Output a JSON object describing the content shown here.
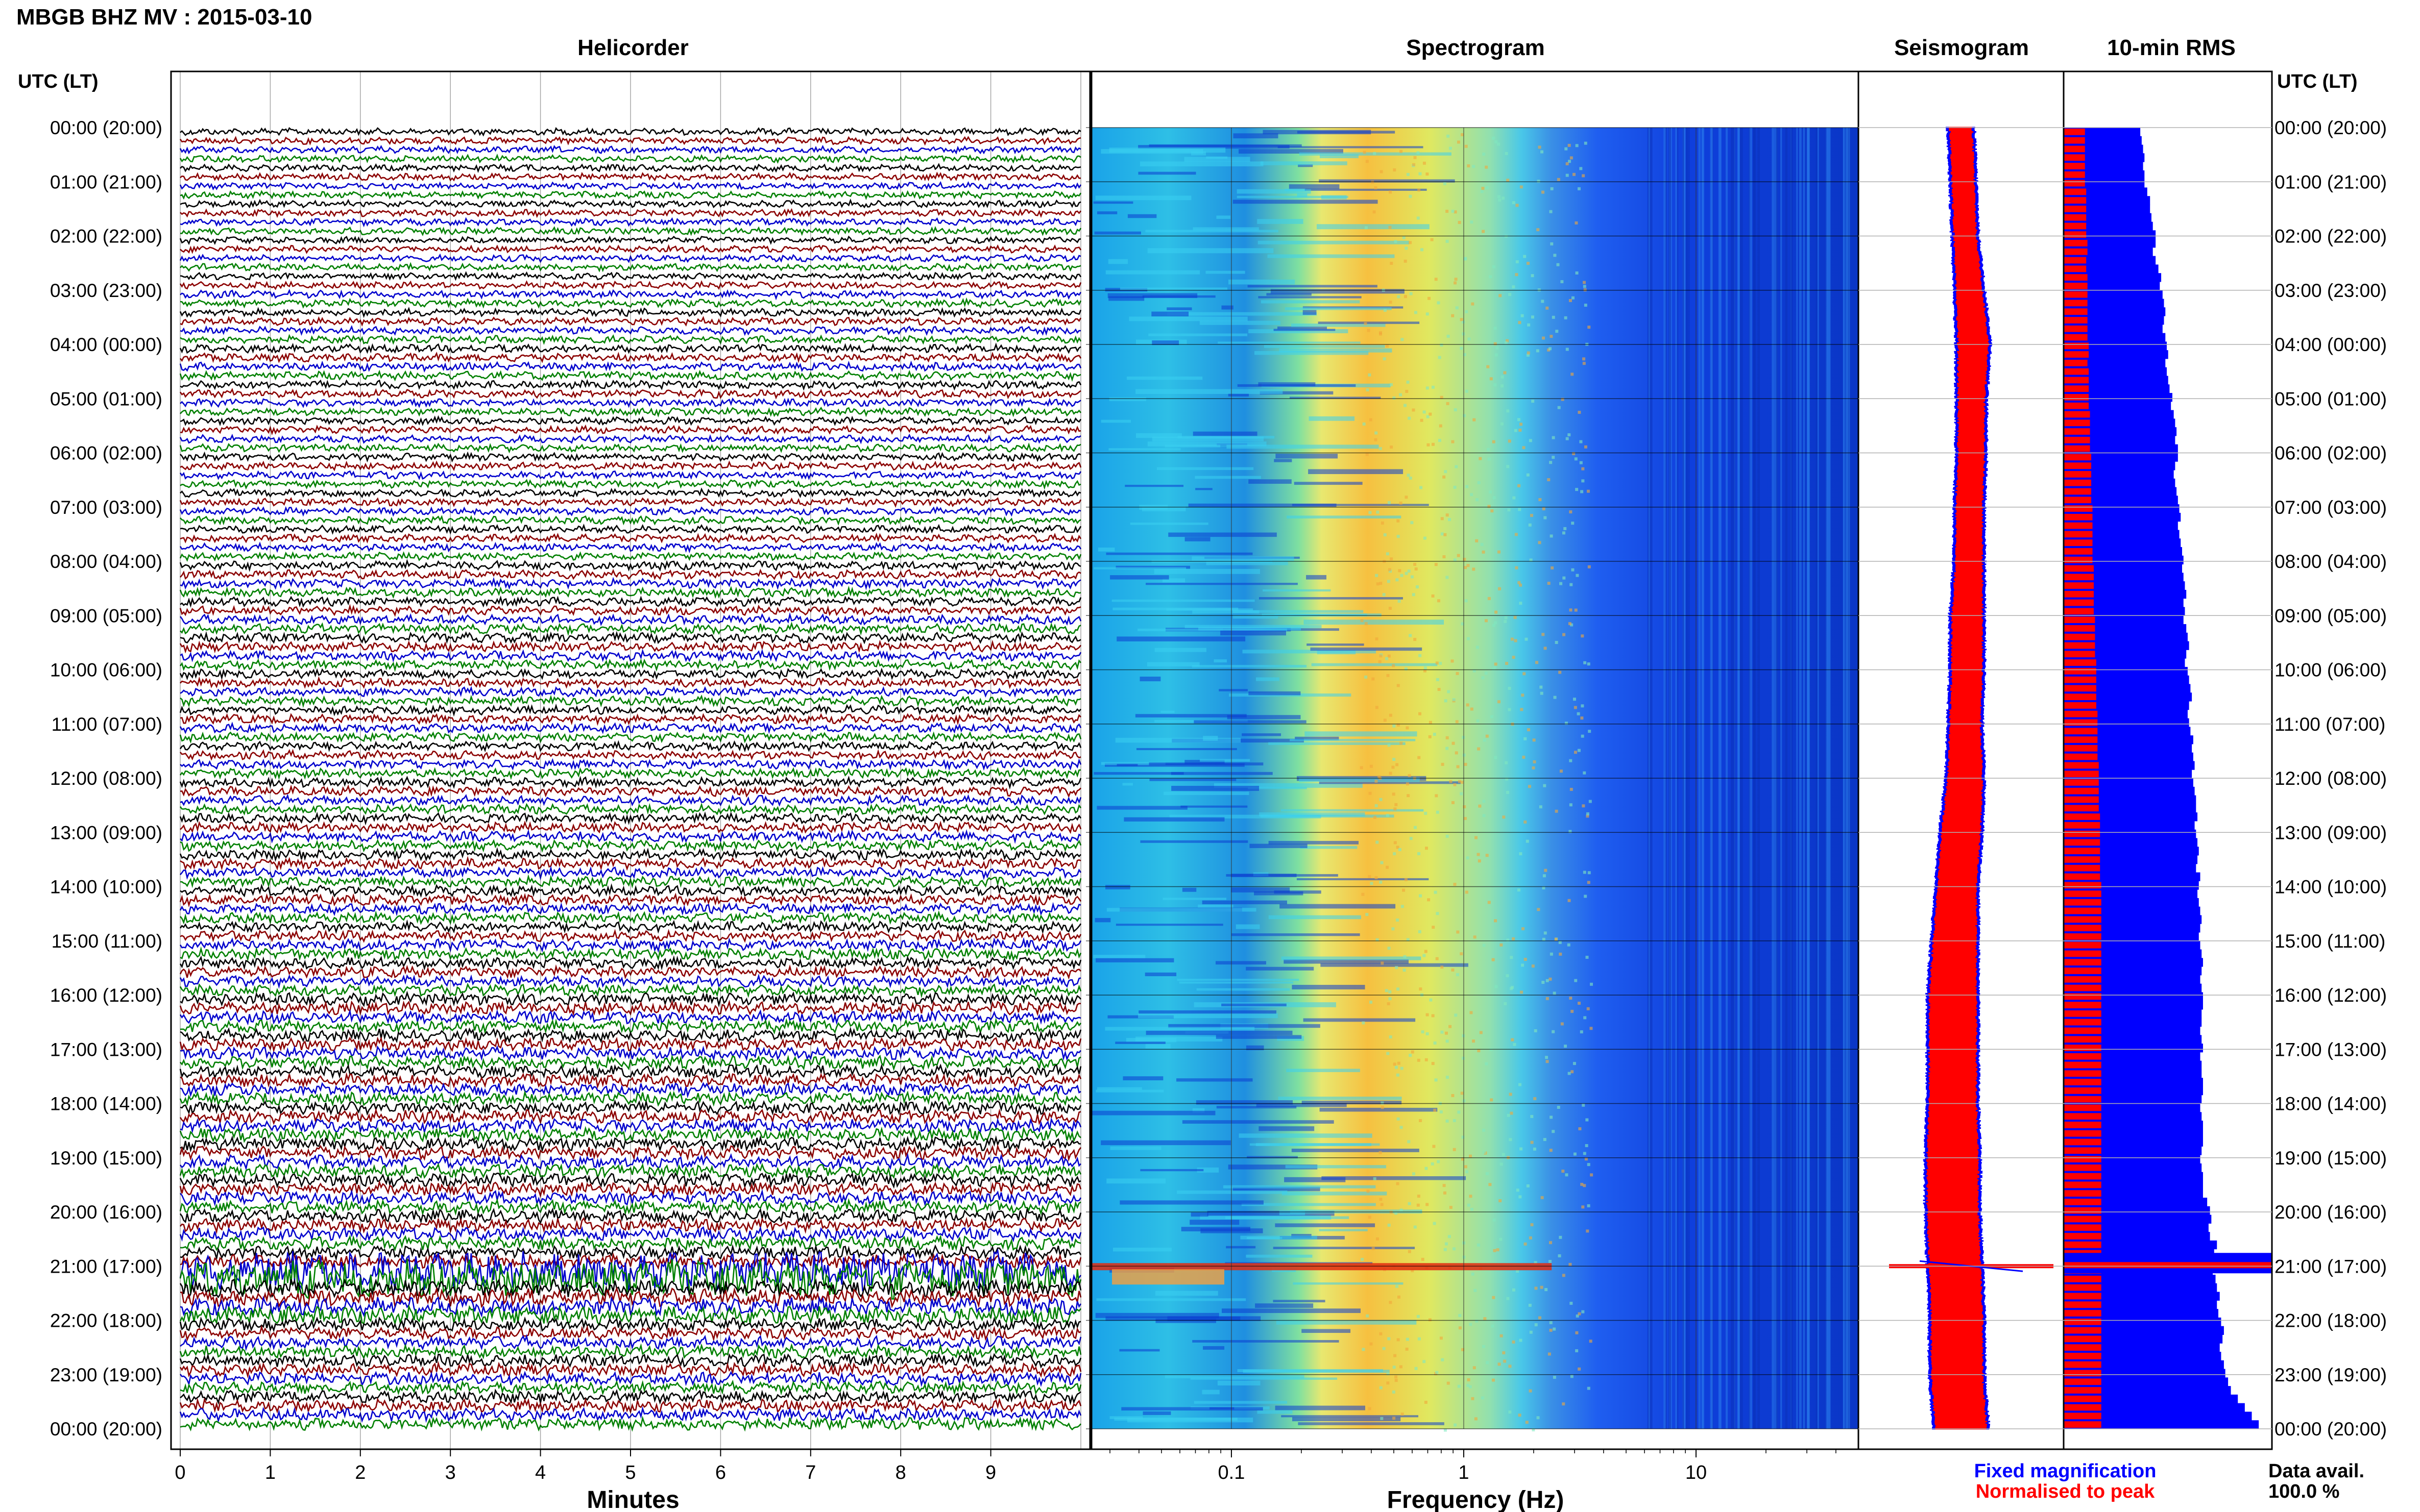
{
  "chart_data": {
    "type": "heatmap",
    "title": "MBGB BHZ MV : 2015-03-10",
    "colors": {
      "frame": "#000000",
      "grid": "#b0b0b0",
      "trace_cycle": [
        "#000000",
        "#8b0000",
        "#0000cd",
        "#008000"
      ],
      "rms_fixed": "#0000ff",
      "rms_norm": "#ff0000"
    },
    "time_axis": {
      "label": "UTC (LT)",
      "ticks": [
        "00:00 (20:00)",
        "01:00 (21:00)",
        "02:00 (22:00)",
        "03:00 (23:00)",
        "04:00 (00:00)",
        "05:00 (01:00)",
        "06:00 (02:00)",
        "07:00 (03:00)",
        "08:00 (04:00)",
        "09:00 (05:00)",
        "10:00 (06:00)",
        "11:00 (07:00)",
        "12:00 (08:00)",
        "13:00 (09:00)",
        "14:00 (10:00)",
        "15:00 (11:00)",
        "16:00 (12:00)",
        "17:00 (13:00)",
        "18:00 (14:00)",
        "19:00 (15:00)",
        "20:00 (16:00)",
        "21:00 (17:00)",
        "22:00 (18:00)",
        "23:00 (19:00)",
        "00:00 (20:00)"
      ]
    },
    "panels": [
      {
        "name": "helicorder",
        "title": "Helicorder",
        "xlabel": "Minutes",
        "xticks": [
          "0",
          "1",
          "2",
          "3",
          "4",
          "5",
          "6",
          "7",
          "8",
          "9"
        ],
        "xlim": [
          0,
          10
        ],
        "lines_per_hour": 6,
        "amplitude_hourly": [
          1.0,
          1.0,
          1.0,
          1.1,
          1.2,
          1.1,
          1.1,
          1.1,
          1.3,
          1.4,
          1.3,
          1.3,
          1.4,
          1.5,
          1.5,
          1.6,
          1.8,
          1.8,
          1.9,
          1.9,
          1.9,
          2.6,
          1.8,
          1.8
        ]
      },
      {
        "name": "spectrogram",
        "title": "Spectrogram",
        "xlabel": "Frequency (Hz)",
        "xticks": [
          "0.1",
          "1",
          "10"
        ],
        "xlim": [
          0.025,
          50
        ],
        "log_x": true,
        "dominant_band_hz": [
          0.2,
          0.5
        ],
        "event_time_hours": 21.0
      },
      {
        "name": "seismogram",
        "title": "Seismogram",
        "envelope_center": [
          0.5,
          0.51,
          0.52,
          0.54,
          0.56,
          0.55,
          0.55,
          0.54,
          0.54,
          0.53,
          0.53,
          0.52,
          0.52,
          0.5,
          0.48,
          0.47,
          0.46,
          0.46,
          0.46,
          0.46,
          0.46,
          0.47,
          0.48,
          0.48,
          0.5
        ],
        "envelope_half_width": [
          0.05,
          0.05,
          0.05,
          0.06,
          0.07,
          0.06,
          0.06,
          0.06,
          0.06,
          0.07,
          0.07,
          0.07,
          0.08,
          0.09,
          0.09,
          0.1,
          0.11,
          0.11,
          0.11,
          0.12,
          0.12,
          0.12,
          0.12,
          0.12,
          0.12
        ],
        "event_time_hours": 21.0
      },
      {
        "name": "rms",
        "title": "10-min RMS",
        "series": [
          {
            "name": "Fixed magnification",
            "color": "#0000ff",
            "values": [
              0.55,
              0.56,
              0.57,
              0.58,
              0.57,
              0.58,
              0.58,
              0.6,
              0.62,
              0.62,
              0.63,
              0.64,
              0.66,
              0.66,
              0.64,
              0.66,
              0.68,
              0.7,
              0.69,
              0.71,
              0.72,
              0.73,
              0.72,
              0.71,
              0.73,
              0.74,
              0.75,
              0.73,
              0.74,
              0.75,
              0.76,
              0.78,
              0.77,
              0.79,
              0.8,
              0.81,
              0.8,
              0.82,
              0.82,
              0.8,
              0.79,
              0.8,
              0.81,
              0.82,
              0.83,
              0.84,
              0.82,
              0.83,
              0.84,
              0.85,
              0.86,
              0.85,
              0.86,
              0.87,
              0.88,
              0.86,
              0.87,
              0.86,
              0.88,
              0.89,
              0.9,
              0.88,
              0.87,
              0.89,
              0.9,
              0.91,
              0.92,
              0.9,
              0.89,
              0.9,
              0.91,
              0.93,
              0.92,
              0.93,
              0.94,
              0.92,
              0.93,
              0.94,
              0.95,
              0.95,
              0.96,
              0.94,
              0.95,
              0.96,
              0.97,
              0.96,
              0.95,
              0.98,
              0.97,
              0.96,
              0.97,
              0.98,
              0.99,
              0.98,
              0.97,
              0.98,
              0.99,
              1.0,
              0.99,
              0.98,
              0.99,
              1.0,
              1.0,
              0.99,
              0.99,
              0.98,
              0.99,
              1.0,
              0.98,
              0.99,
              0.99,
              1.0,
              1.0,
              0.99,
              0.98,
              0.99,
              1.0,
              1.0,
              1.0,
              0.99,
              0.98,
              0.99,
              1.0,
              1.0,
              1.0,
              1.03,
              1.05,
              1.06,
              1.04,
              1.05,
              1.1,
              1.08,
              1.06,
              1.07,
              1.09,
              1.1,
              1.12,
              1.1,
              1.11,
              1.13,
              1.15,
              1.14,
              1.12,
              1.13,
              1.15,
              1.16,
              1.18,
              1.2,
              1.25,
              1.3,
              1.35,
              1.4
            ]
          },
          {
            "name": "Normalised to peak",
            "color": "#ff0000",
            "values": [
              0.17,
              0.17,
              0.17,
              0.17,
              0.17,
              0.17,
              0.17,
              0.18,
              0.18,
              0.18,
              0.18,
              0.18,
              0.18,
              0.19,
              0.19,
              0.18,
              0.18,
              0.19,
              0.19,
              0.19,
              0.19,
              0.19,
              0.19,
              0.19,
              0.19,
              0.2,
              0.2,
              0.19,
              0.2,
              0.2,
              0.2,
              0.2,
              0.2,
              0.21,
              0.21,
              0.21,
              0.21,
              0.21,
              0.22,
              0.22,
              0.22,
              0.22,
              0.22,
              0.22,
              0.23,
              0.23,
              0.23,
              0.23,
              0.23,
              0.23,
              0.23,
              0.24,
              0.24,
              0.24,
              0.24,
              0.24,
              0.24,
              0.25,
              0.25,
              0.25,
              0.25,
              0.25,
              0.26,
              0.26,
              0.26,
              0.26,
              0.26,
              0.26,
              0.27,
              0.27,
              0.27,
              0.27,
              0.27,
              0.27,
              0.28,
              0.28,
              0.28,
              0.28,
              0.28,
              0.28,
              0.29,
              0.29,
              0.29,
              0.29,
              0.29,
              0.29,
              0.29,
              0.29,
              0.3,
              0.3,
              0.3,
              0.3,
              0.3,
              0.3,
              0.3,
              0.3,
              0.3,
              0.3,
              0.3,
              0.3,
              0.3,
              0.3,
              0.3,
              0.3,
              0.3,
              0.3,
              0.3,
              0.3,
              0.3,
              0.3,
              0.3,
              0.3,
              0.3,
              0.3,
              0.3,
              0.3,
              0.3,
              0.3,
              0.3,
              0.3,
              0.3,
              0.3,
              0.3,
              0.3,
              0.3,
              0.3,
              0.3,
              0.3,
              0.3,
              0.3,
              0.3,
              0.3,
              0.3,
              0.3,
              0.3,
              0.3,
              0.3,
              0.3,
              0.3,
              0.3,
              0.3,
              0.3,
              0.3,
              0.3,
              0.3,
              0.3,
              0.3,
              0.3,
              0.3,
              0.3,
              0.3,
              0.3,
              0.3,
              0.3
            ]
          },
          {
            "name": "peak-event",
            "event_time_hours": 21.0,
            "event_fixed_value": 3.3,
            "event_norm_value": 3.3
          }
        ],
        "legend": [
          "Fixed magnification",
          "Normalised to peak"
        ]
      }
    ],
    "data_availability_label": "Data avail.",
    "data_availability_value": "100.0 %"
  }
}
